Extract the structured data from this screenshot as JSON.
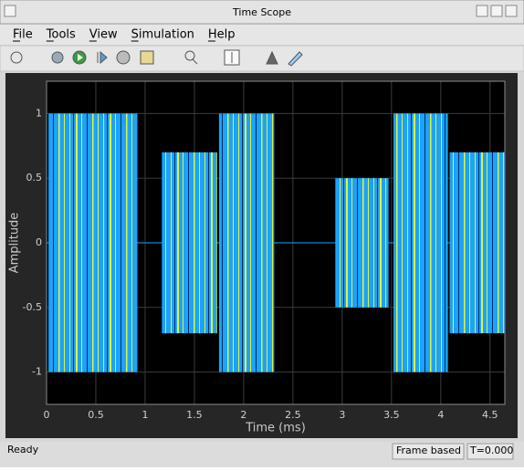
{
  "window": {
    "title": "Time Scope"
  },
  "menu": [
    "File",
    "Tools",
    "View",
    "Simulation",
    "Help"
  ],
  "chart_data": {
    "type": "burst",
    "xlabel": "Time (ms)",
    "ylabel": "Amplitude",
    "x_start": [
      0.02,
      1.17,
      1.75,
      2.93,
      3.52,
      4.09
    ],
    "x_end": [
      0.92,
      1.73,
      2.31,
      3.47,
      4.07,
      4.65
    ],
    "values": [
      1,
      0.7,
      1,
      0.5,
      1,
      0.7
    ],
    "colors": [
      "#1aa3ff",
      "#e4f03c"
    ],
    "xlim": [
      0,
      4.65
    ],
    "ylim": [
      -1.25,
      1.25
    ],
    "xticks": [
      0,
      0.5,
      1,
      1.5,
      2,
      2.5,
      3,
      3.5,
      4,
      4.5
    ],
    "yticks": [
      -1,
      -0.5,
      0,
      0.5,
      1
    ],
    "grid": true
  },
  "status": {
    "left": "Ready",
    "mode": "Frame based",
    "time": "T=0.000"
  }
}
